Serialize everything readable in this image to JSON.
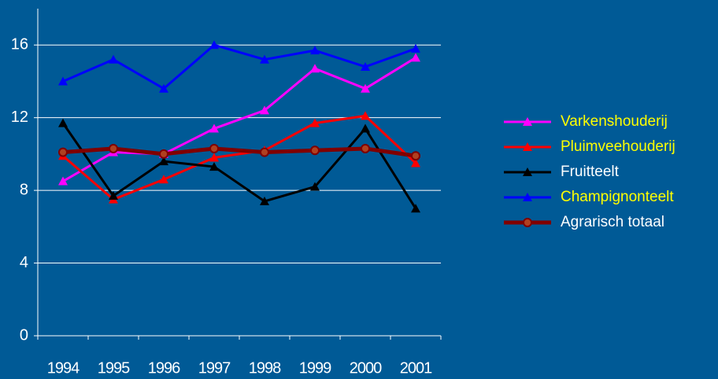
{
  "chart_data": {
    "type": "line",
    "categories": [
      "1994",
      "1995",
      "1996",
      "1997",
      "1998",
      "1999",
      "2000",
      "2001"
    ],
    "ylim": [
      0,
      18
    ],
    "yticks": [
      0,
      4,
      8,
      12,
      16
    ],
    "grid": true,
    "legend": "right",
    "series": [
      {
        "name": "Varkenshouderij",
        "color": "#ff00ff",
        "label_color": "#ffff00",
        "marker": "triangle",
        "values": [
          8.5,
          10.1,
          10.0,
          11.4,
          12.4,
          14.7,
          13.6,
          15.3
        ]
      },
      {
        "name": "Pluimveehouderij",
        "color": "#ff0000",
        "label_color": "#ffff00",
        "marker": "triangle",
        "values": [
          9.9,
          7.5,
          8.6,
          9.8,
          10.2,
          11.7,
          12.1,
          9.5
        ]
      },
      {
        "name": "Fruitteelt",
        "color": "#000000",
        "label_color": "#ffffff",
        "marker": "triangle",
        "values": [
          11.7,
          7.7,
          9.6,
          9.3,
          7.4,
          8.2,
          11.4,
          7.0
        ]
      },
      {
        "name": "Champignonteelt",
        "color": "#0000ff",
        "label_color": "#ffff00",
        "marker": "triangle",
        "values": [
          14.0,
          15.2,
          13.6,
          16.0,
          15.2,
          15.7,
          14.8,
          15.8
        ]
      },
      {
        "name": "Agrarisch totaal",
        "color": "#800000",
        "label_color": "#ffffff",
        "marker": "circle",
        "values": [
          10.1,
          10.3,
          10.0,
          10.3,
          10.1,
          10.2,
          10.3,
          9.9
        ]
      }
    ]
  }
}
